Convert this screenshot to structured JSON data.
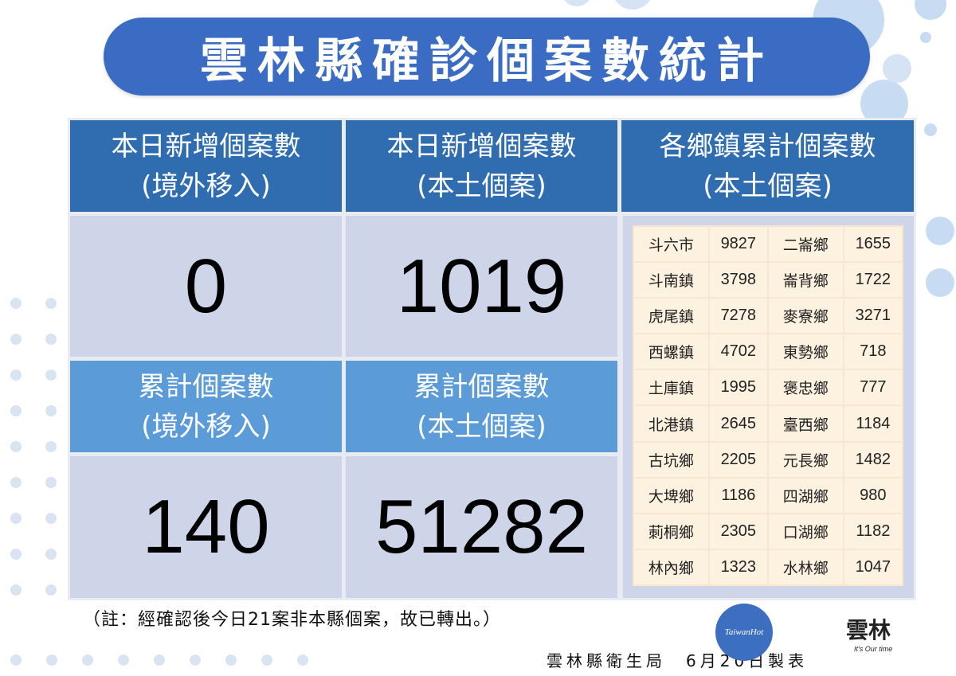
{
  "title": "雲林縣確診個案數統計",
  "summary": {
    "new_imported": {
      "line1": "本日新增個案數",
      "line2": "(境外移入)",
      "value": "0"
    },
    "new_local": {
      "line1": "本日新增個案數",
      "line2": "(本土個案)",
      "value": "1019"
    },
    "cum_imported": {
      "line1": "累計個案數",
      "line2": "(境外移入)",
      "value": "140"
    },
    "cum_local": {
      "line1": "累計個案數",
      "line2": "(本土個案)",
      "value": "51282"
    }
  },
  "towns": {
    "line1": "各鄉鎮累計個案數",
    "line2": "(本土個案)",
    "rows": [
      {
        "a_name": "斗六市",
        "a_val": "9827",
        "b_name": "二崙鄉",
        "b_val": "1655"
      },
      {
        "a_name": "斗南鎮",
        "a_val": "3798",
        "b_name": "崙背鄉",
        "b_val": "1722"
      },
      {
        "a_name": "虎尾鎮",
        "a_val": "7278",
        "b_name": "麥寮鄉",
        "b_val": "3271"
      },
      {
        "a_name": "西螺鎮",
        "a_val": "4702",
        "b_name": "東勢鄉",
        "b_val": "718"
      },
      {
        "a_name": "土庫鎮",
        "a_val": "1995",
        "b_name": "褒忠鄉",
        "b_val": "777"
      },
      {
        "a_name": "北港鎮",
        "a_val": "2645",
        "b_name": "臺西鄉",
        "b_val": "1184"
      },
      {
        "a_name": "古坑鄉",
        "a_val": "2205",
        "b_name": "元長鄉",
        "b_val": "1482"
      },
      {
        "a_name": "大埤鄉",
        "a_val": "1186",
        "b_name": "四湖鄉",
        "b_val": "980"
      },
      {
        "a_name": "莿桐鄉",
        "a_val": "2305",
        "b_name": "口湖鄉",
        "b_val": "1182"
      },
      {
        "a_name": "林內鄉",
        "a_val": "1323",
        "b_name": "水林鄉",
        "b_val": "1047"
      }
    ]
  },
  "note": "（註：經確認後今日21案非本縣個案，故已轉出。）",
  "footer": "雲林縣衛生局　6月20日製表",
  "logos": {
    "taiwanhot": "TaiwanHot",
    "yunlin_slogan": "It's Our time"
  },
  "colors": {
    "title_bg": "#3a6cc4",
    "header_dark": "#2f6db0",
    "header_light": "#5b9bd8",
    "value_bg": "#cfd5e9",
    "table_bg": "#fdf1e0"
  }
}
